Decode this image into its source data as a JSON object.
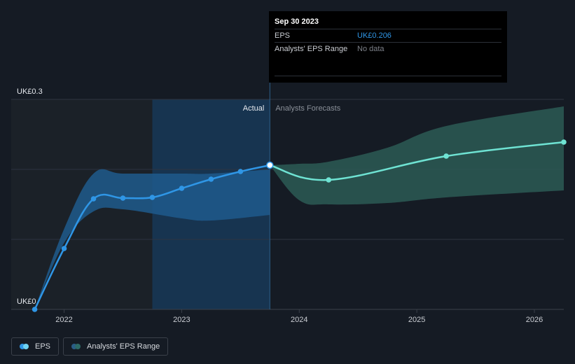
{
  "tooltip": {
    "date": "Sep 30 2023",
    "rows": [
      {
        "label": "EPS",
        "value": "UK£0.206"
      },
      {
        "label": "Analysts' EPS Range",
        "value": "No data"
      }
    ]
  },
  "legend": [
    {
      "label": "EPS",
      "color_a": "#2f96e6",
      "color_b": "#6fd3f3"
    },
    {
      "label": "Analysts' EPS Range",
      "color_a": "#2a5d86",
      "color_b": "#2d6a66"
    }
  ],
  "chart_data": {
    "type": "line",
    "ylabel_top": "UK£0.3",
    "ylabel_bottom": "UK£0",
    "ylim": [
      0,
      0.3
    ],
    "xlim": [
      2021.55,
      2026.25
    ],
    "x_ticks": [
      "2022",
      "2023",
      "2024",
      "2025",
      "2026"
    ],
    "x_tick_values": [
      2022,
      2023,
      2024,
      2025,
      2026
    ],
    "grid": true,
    "section_labels": {
      "actual": "Actual",
      "forecast": "Analysts Forecasts"
    },
    "divider_x": 2023.75,
    "colors": {
      "eps": "#2f96e6",
      "forecast": "#6fe3d3",
      "eps_range": "#1f5a8c",
      "forecast_range": "#2c5a55",
      "shade_dark": "#1b2128",
      "shade_blue": "#173450"
    },
    "series": [
      {
        "name": "EPS",
        "points": [
          {
            "x": 2021.75,
            "y": 0.0
          },
          {
            "x": 2022.0,
            "y": 0.087
          },
          {
            "x": 2022.25,
            "y": 0.158
          },
          {
            "x": 2022.5,
            "y": 0.159
          },
          {
            "x": 2022.75,
            "y": 0.16
          },
          {
            "x": 2023.0,
            "y": 0.173
          },
          {
            "x": 2023.25,
            "y": 0.186
          },
          {
            "x": 2023.5,
            "y": 0.197
          },
          {
            "x": 2023.75,
            "y": 0.206
          }
        ]
      },
      {
        "name": "Analysts Forecasts",
        "points": [
          {
            "x": 2023.75,
            "y": 0.206
          },
          {
            "x": 2024.25,
            "y": 0.185
          },
          {
            "x": 2025.25,
            "y": 0.219
          },
          {
            "x": 2026.25,
            "y": 0.239
          }
        ]
      }
    ],
    "ranges": [
      {
        "name": "Analysts' EPS Range (past)",
        "points": [
          {
            "x": 2021.75,
            "y_low": 0.0,
            "y_high": 0.0
          },
          {
            "x": 2022.0,
            "y_low": 0.095,
            "y_high": 0.115
          },
          {
            "x": 2022.25,
            "y_low": 0.14,
            "y_high": 0.194
          },
          {
            "x": 2022.5,
            "y_low": 0.143,
            "y_high": 0.194
          },
          {
            "x": 2023.0,
            "y_low": 0.13,
            "y_high": 0.194
          },
          {
            "x": 2023.25,
            "y_low": 0.127,
            "y_high": 0.194
          },
          {
            "x": 2023.75,
            "y_low": 0.135,
            "y_high": 0.2
          }
        ]
      },
      {
        "name": "Analysts' EPS Range (forecast)",
        "points": [
          {
            "x": 2023.75,
            "y_low": 0.206,
            "y_high": 0.206
          },
          {
            "x": 2024.0,
            "y_low": 0.156,
            "y_high": 0.208
          },
          {
            "x": 2024.25,
            "y_low": 0.15,
            "y_high": 0.211
          },
          {
            "x": 2024.75,
            "y_low": 0.152,
            "y_high": 0.231
          },
          {
            "x": 2025.25,
            "y_low": 0.16,
            "y_high": 0.262
          },
          {
            "x": 2026.25,
            "y_low": 0.17,
            "y_high": 0.29
          }
        ]
      }
    ]
  }
}
